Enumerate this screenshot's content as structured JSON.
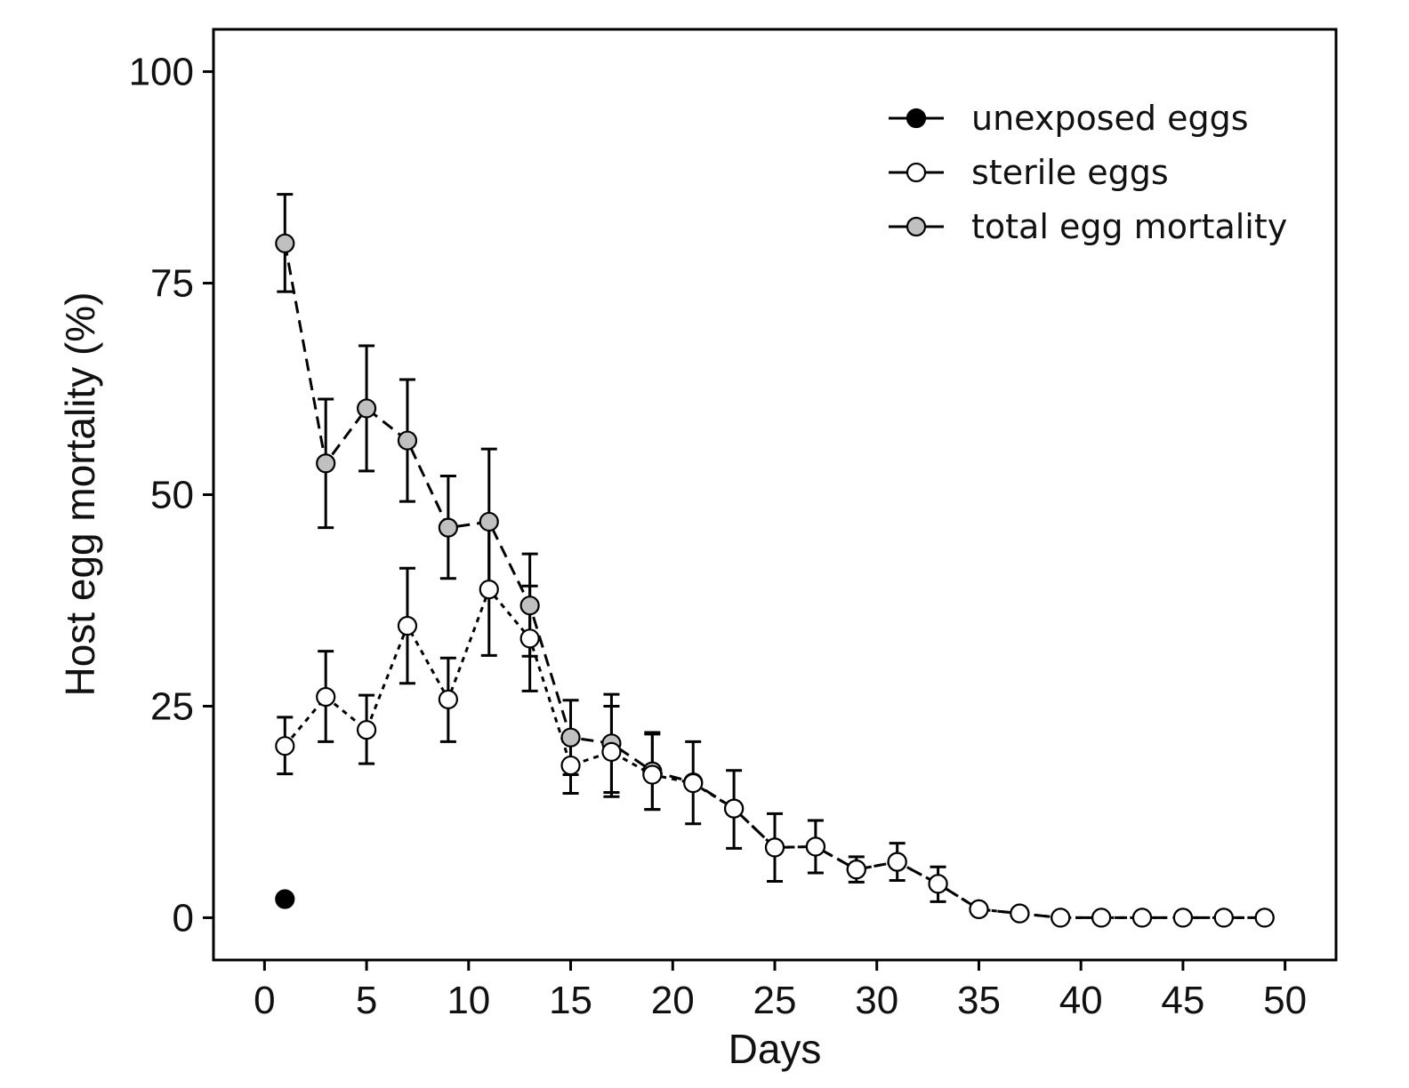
{
  "chart_data": {
    "type": "line",
    "xlabel": "Days",
    "ylabel": "Host egg mortality (%)",
    "xlim": [
      -2.5,
      52.5
    ],
    "ylim": [
      -5,
      105
    ],
    "xticks": [
      0,
      5,
      10,
      15,
      20,
      25,
      30,
      35,
      40,
      45,
      50
    ],
    "yticks": [
      0,
      25,
      50,
      75,
      100
    ],
    "grid": false,
    "legend_position": "top-right",
    "series": [
      {
        "name": "unexposed eggs",
        "marker_fill": "#000000",
        "line_style": "none",
        "points": [
          {
            "x": 1,
            "y": 2.2
          }
        ]
      },
      {
        "name": "sterile eggs",
        "marker_fill": "#ffffff",
        "line_style": "dotted",
        "points": [
          {
            "x": 1,
            "y": 20.3,
            "lo": 17.0,
            "hi": 23.7
          },
          {
            "x": 3,
            "y": 26.1,
            "lo": 20.8,
            "hi": 31.5
          },
          {
            "x": 5,
            "y": 22.2,
            "lo": 18.2,
            "hi": 26.3
          },
          {
            "x": 7,
            "y": 34.5,
            "lo": 27.7,
            "hi": 41.3
          },
          {
            "x": 9,
            "y": 25.8,
            "lo": 20.8,
            "hi": 30.7
          },
          {
            "x": 11,
            "y": 38.8,
            "lo": 31.0,
            "hi": 46.5
          },
          {
            "x": 13,
            "y": 33.0,
            "lo": 26.8,
            "hi": 39.2
          },
          {
            "x": 15,
            "y": 18.0,
            "lo": 14.7,
            "hi": 21.2
          },
          {
            "x": 17,
            "y": 19.6,
            "lo": 14.3,
            "hi": 25.0
          },
          {
            "x": 19,
            "y": 16.9,
            "lo": 12.8,
            "hi": 21.9
          },
          {
            "x": 21,
            "y": 15.9,
            "lo": 11.1,
            "hi": 20.8
          },
          {
            "x": 23,
            "y": 12.9,
            "lo": 8.2,
            "hi": 17.4
          },
          {
            "x": 25,
            "y": 8.3,
            "lo": 4.3,
            "hi": 12.3
          },
          {
            "x": 27,
            "y": 8.4,
            "lo": 5.3,
            "hi": 11.5
          },
          {
            "x": 29,
            "y": 5.7,
            "lo": 4.2,
            "hi": 7.2
          },
          {
            "x": 31,
            "y": 6.6,
            "lo": 4.4,
            "hi": 8.8
          },
          {
            "x": 33,
            "y": 4.0,
            "lo": 1.9,
            "hi": 6.0
          },
          {
            "x": 35,
            "y": 1.0
          },
          {
            "x": 37,
            "y": 0.5
          },
          {
            "x": 39,
            "y": 0.0
          },
          {
            "x": 41,
            "y": 0.0
          },
          {
            "x": 43,
            "y": 0.0
          },
          {
            "x": 45,
            "y": 0.0
          },
          {
            "x": 47,
            "y": 0.0
          },
          {
            "x": 49,
            "y": 0.0
          }
        ]
      },
      {
        "name": "total egg mortality",
        "marker_fill": "#c0c0c0",
        "line_style": "dashed",
        "points": [
          {
            "x": 1,
            "y": 79.7,
            "lo": 74.0,
            "hi": 85.5
          },
          {
            "x": 3,
            "y": 53.7,
            "lo": 46.1,
            "hi": 61.3
          },
          {
            "x": 5,
            "y": 60.2,
            "lo": 52.8,
            "hi": 67.6
          },
          {
            "x": 7,
            "y": 56.4,
            "lo": 49.2,
            "hi": 63.6
          },
          {
            "x": 9,
            "y": 46.1,
            "lo": 40.1,
            "hi": 52.2
          },
          {
            "x": 11,
            "y": 46.8,
            "lo": 38.2,
            "hi": 55.4
          },
          {
            "x": 13,
            "y": 36.9,
            "lo": 30.9,
            "hi": 43.0
          },
          {
            "x": 15,
            "y": 21.3,
            "lo": 16.9,
            "hi": 25.7
          },
          {
            "x": 17,
            "y": 20.6,
            "lo": 14.8,
            "hi": 26.4
          },
          {
            "x": 19,
            "y": 17.3,
            "lo": 12.8,
            "hi": 21.7
          },
          {
            "x": 21,
            "y": 16.0
          },
          {
            "x": 23,
            "y": 12.9
          },
          {
            "x": 25,
            "y": 8.3
          },
          {
            "x": 27,
            "y": 8.4
          },
          {
            "x": 29,
            "y": 5.7
          },
          {
            "x": 31,
            "y": 6.6
          },
          {
            "x": 33,
            "y": 4.0
          },
          {
            "x": 35,
            "y": 1.0
          },
          {
            "x": 37,
            "y": 0.5
          },
          {
            "x": 39,
            "y": 0.0
          },
          {
            "x": 41,
            "y": 0.0
          },
          {
            "x": 43,
            "y": 0.0
          },
          {
            "x": 45,
            "y": 0.0
          },
          {
            "x": 47,
            "y": 0.0
          },
          {
            "x": 49,
            "y": 0.0
          }
        ]
      }
    ]
  }
}
